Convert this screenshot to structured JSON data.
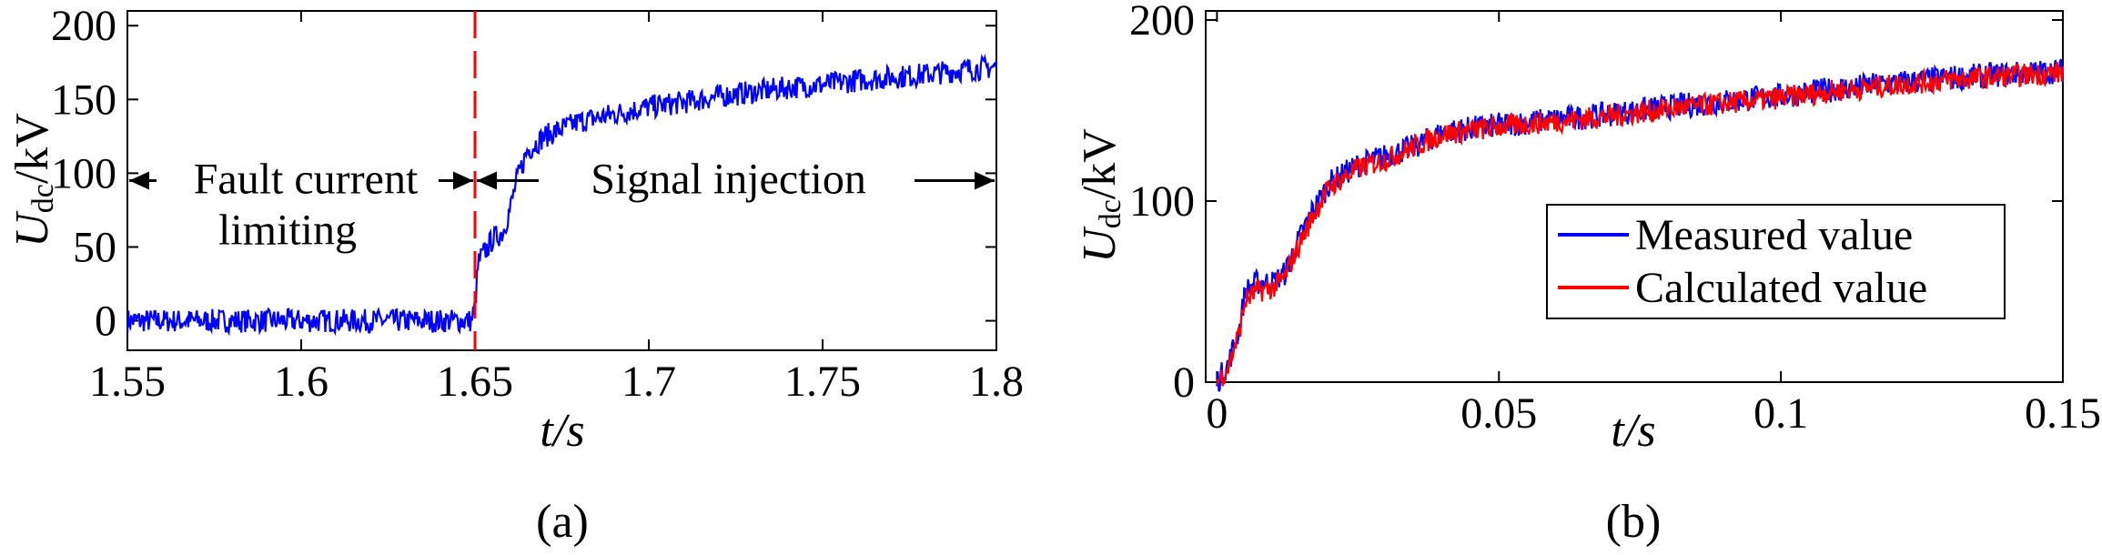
{
  "chart_data": [
    {
      "type": "line",
      "panel_label": "(a)",
      "xlabel": "t/s",
      "ylabel": "Udc/kV",
      "ylabel_main": "U",
      "ylabel_sub": "dc",
      "ylabel_unit": "/kV",
      "xlim": [
        1.55,
        1.8
      ],
      "ylim": [
        -20,
        210
      ],
      "xticks": [
        1.55,
        1.6,
        1.65,
        1.7,
        1.75,
        1.8
      ],
      "xtick_labels": [
        "1.55",
        "1.6",
        "1.65",
        "1.7",
        "1.75",
        "1.8"
      ],
      "yticks": [
        0,
        50,
        100,
        150,
        200
      ],
      "ytick_labels": [
        "0",
        "50",
        "100",
        "150",
        "200"
      ],
      "grid": false,
      "series": [
        {
          "name": "Udc",
          "color": "#0000ff",
          "x": [
            1.55,
            1.6,
            1.649,
            1.65,
            1.651,
            1.655,
            1.658,
            1.66,
            1.662,
            1.665,
            1.67,
            1.675,
            1.68,
            1.69,
            1.7,
            1.71,
            1.72,
            1.73,
            1.74,
            1.75,
            1.76,
            1.77,
            1.78,
            1.79,
            1.8
          ],
          "y": [
            0,
            0,
            0,
            10,
            40,
            55,
            60,
            75,
            95,
            115,
            125,
            130,
            135,
            140,
            145,
            148,
            152,
            155,
            158,
            160,
            163,
            165,
            167,
            170,
            172
          ]
        }
      ],
      "marker_line": {
        "x": 1.65,
        "color": "#ff0000",
        "style": "dashed"
      },
      "annotations": [
        {
          "text_line1": "Fault current",
          "text_line2": "limiting",
          "x_from": 1.55,
          "x_to": 1.65,
          "y": 95
        },
        {
          "text": "Signal injection",
          "x_from": 1.65,
          "x_to": 1.8,
          "y": 95
        }
      ]
    },
    {
      "type": "line",
      "panel_label": "(b)",
      "xlabel": "t/s",
      "ylabel": "Udc/kV",
      "ylabel_main": "U",
      "ylabel_sub": "dc",
      "ylabel_unit": "/kV",
      "xlim": [
        -0.002,
        0.15
      ],
      "ylim": [
        0,
        205
      ],
      "xticks": [
        0,
        0.05,
        0.1,
        0.15
      ],
      "xtick_labels": [
        "0",
        "0.05",
        "0.1",
        "0.15"
      ],
      "yticks": [
        0,
        100,
        200
      ],
      "ytick_labels": [
        "0",
        "100",
        "200"
      ],
      "grid": false,
      "legend": "right-center",
      "series": [
        {
          "name": "Measured value",
          "color": "#0000ff",
          "x": [
            0,
            0.002,
            0.004,
            0.005,
            0.007,
            0.01,
            0.012,
            0.014,
            0.017,
            0.02,
            0.025,
            0.03,
            0.035,
            0.04,
            0.05,
            0.06,
            0.07,
            0.08,
            0.09,
            0.1,
            0.11,
            0.12,
            0.13,
            0.14,
            0.15
          ],
          "y": [
            0,
            10,
            30,
            50,
            55,
            55,
            60,
            75,
            95,
            110,
            120,
            125,
            130,
            138,
            142,
            145,
            148,
            152,
            155,
            158,
            162,
            165,
            168,
            170,
            172
          ]
        },
        {
          "name": "Calculated value",
          "color": "#ff0000",
          "x": [
            0,
            0.002,
            0.004,
            0.005,
            0.007,
            0.01,
            0.012,
            0.014,
            0.017,
            0.02,
            0.025,
            0.03,
            0.035,
            0.04,
            0.05,
            0.06,
            0.07,
            0.08,
            0.09,
            0.1,
            0.11,
            0.12,
            0.13,
            0.14,
            0.15
          ],
          "y": [
            0,
            8,
            28,
            45,
            50,
            52,
            58,
            72,
            92,
            108,
            118,
            123,
            130,
            137,
            141,
            144,
            147,
            151,
            154,
            157,
            161,
            164,
            167,
            169,
            171
          ]
        }
      ]
    }
  ]
}
